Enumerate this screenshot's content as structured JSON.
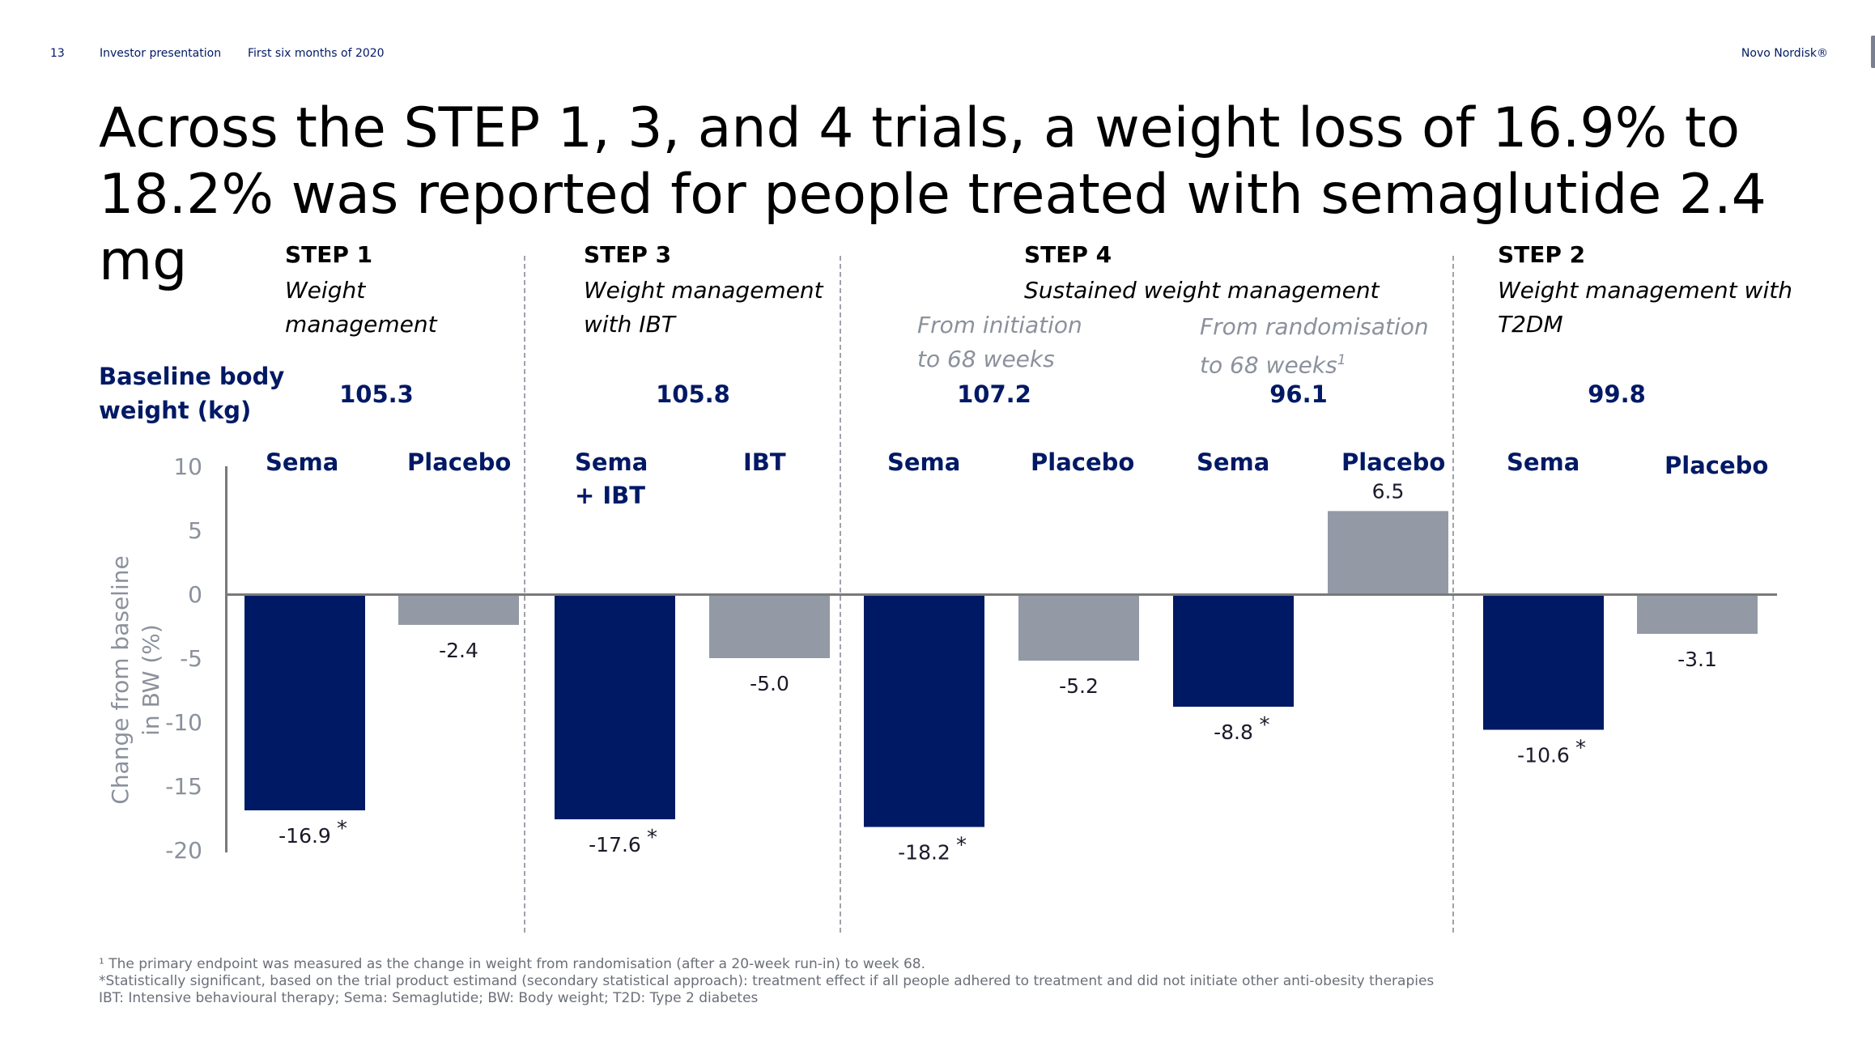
{
  "header": {
    "slide_number": "13",
    "section": "Investor presentation",
    "period": "First six months of 2020",
    "brand": "Novo Nordisk®"
  },
  "title": "Across the STEP 1, 3, and 4 trials, a weight loss of 16.9% to 18.2% was reported for people treated with semaglutide 2.4 mg",
  "steps": [
    {
      "name": "STEP 1",
      "desc_line1": "Weight",
      "desc_line2": "management"
    },
    {
      "name": "STEP 3",
      "desc_line1": "Weight management",
      "desc_line2": "with IBT"
    },
    {
      "name": "STEP 4",
      "desc_line1": "Sustained weight management",
      "sub_a_line1": "From initiation",
      "sub_a_line2": "to 68 weeks",
      "sub_b_line1": "From randomisation",
      "sub_b_line2": "to 68 weeks",
      "sub_b_sup": "1"
    },
    {
      "name": "STEP 2",
      "desc_line1": "Weight management with",
      "desc_line2": "T2DM"
    }
  ],
  "baseline": {
    "label_line1": "Baseline body",
    "label_line2": "weight (kg)",
    "values": [
      "105.3",
      "105.8",
      "107.2",
      "96.1",
      "99.8"
    ]
  },
  "group_labels": {
    "step1_sema": "Sema",
    "step1_placebo": "Placebo",
    "step3_sema_line1": "Sema",
    "step3_sema_line2": "+ IBT",
    "step3_ibt": "IBT",
    "step4a_sema": "Sema",
    "step4a_placebo": "Placebo",
    "step4b_sema": "Sema",
    "step4b_placebo": "Placebo",
    "step2_sema": "Sema",
    "step2_placebo": "Placebo"
  },
  "chart_data": {
    "type": "bar",
    "ylabel": "Change from baseline in BW (%)",
    "ylabel_line1": "Change from baseline",
    "ylabel_line2": "in BW (%)",
    "ylim": [
      -20,
      10
    ],
    "yticks": [
      "10",
      "5",
      "0",
      "-5",
      "-10",
      "-15",
      "-20"
    ],
    "grid": false,
    "categories": [
      "Sema",
      "Placebo",
      "Sema + IBT",
      "IBT",
      "Sema",
      "Placebo",
      "Sema",
      "Placebo",
      "Sema",
      "Placebo"
    ],
    "values": [
      -16.9,
      -2.4,
      -17.6,
      -5.0,
      -18.2,
      -5.2,
      -8.8,
      6.5,
      -10.6,
      -3.1
    ],
    "data_labels": [
      "-16.9",
      "-2.4",
      "-17.6",
      "-5.0",
      "-18.2",
      "-5.2",
      "-8.8",
      "6.5",
      "-10.6",
      "-3.1"
    ],
    "significant": [
      true,
      false,
      true,
      false,
      true,
      false,
      true,
      false,
      true,
      false
    ],
    "significance_marker": "*",
    "colors": {
      "sema": "#001965",
      "comparator": "#939aa6"
    }
  },
  "footnotes": {
    "note1": "¹ The primary endpoint was measured as the change in weight from randomisation (after a 20-week run-in) to week 68.",
    "note2": "*Statistically significant, based on the trial product estimand (secondary statistical approach): treatment effect if all people adhered to treatment and did not initiate other anti-obesity therapies",
    "note3": "IBT: Intensive behavioural therapy; Sema: Semaglutide; BW: Body weight; T2D: Type 2 diabetes"
  }
}
